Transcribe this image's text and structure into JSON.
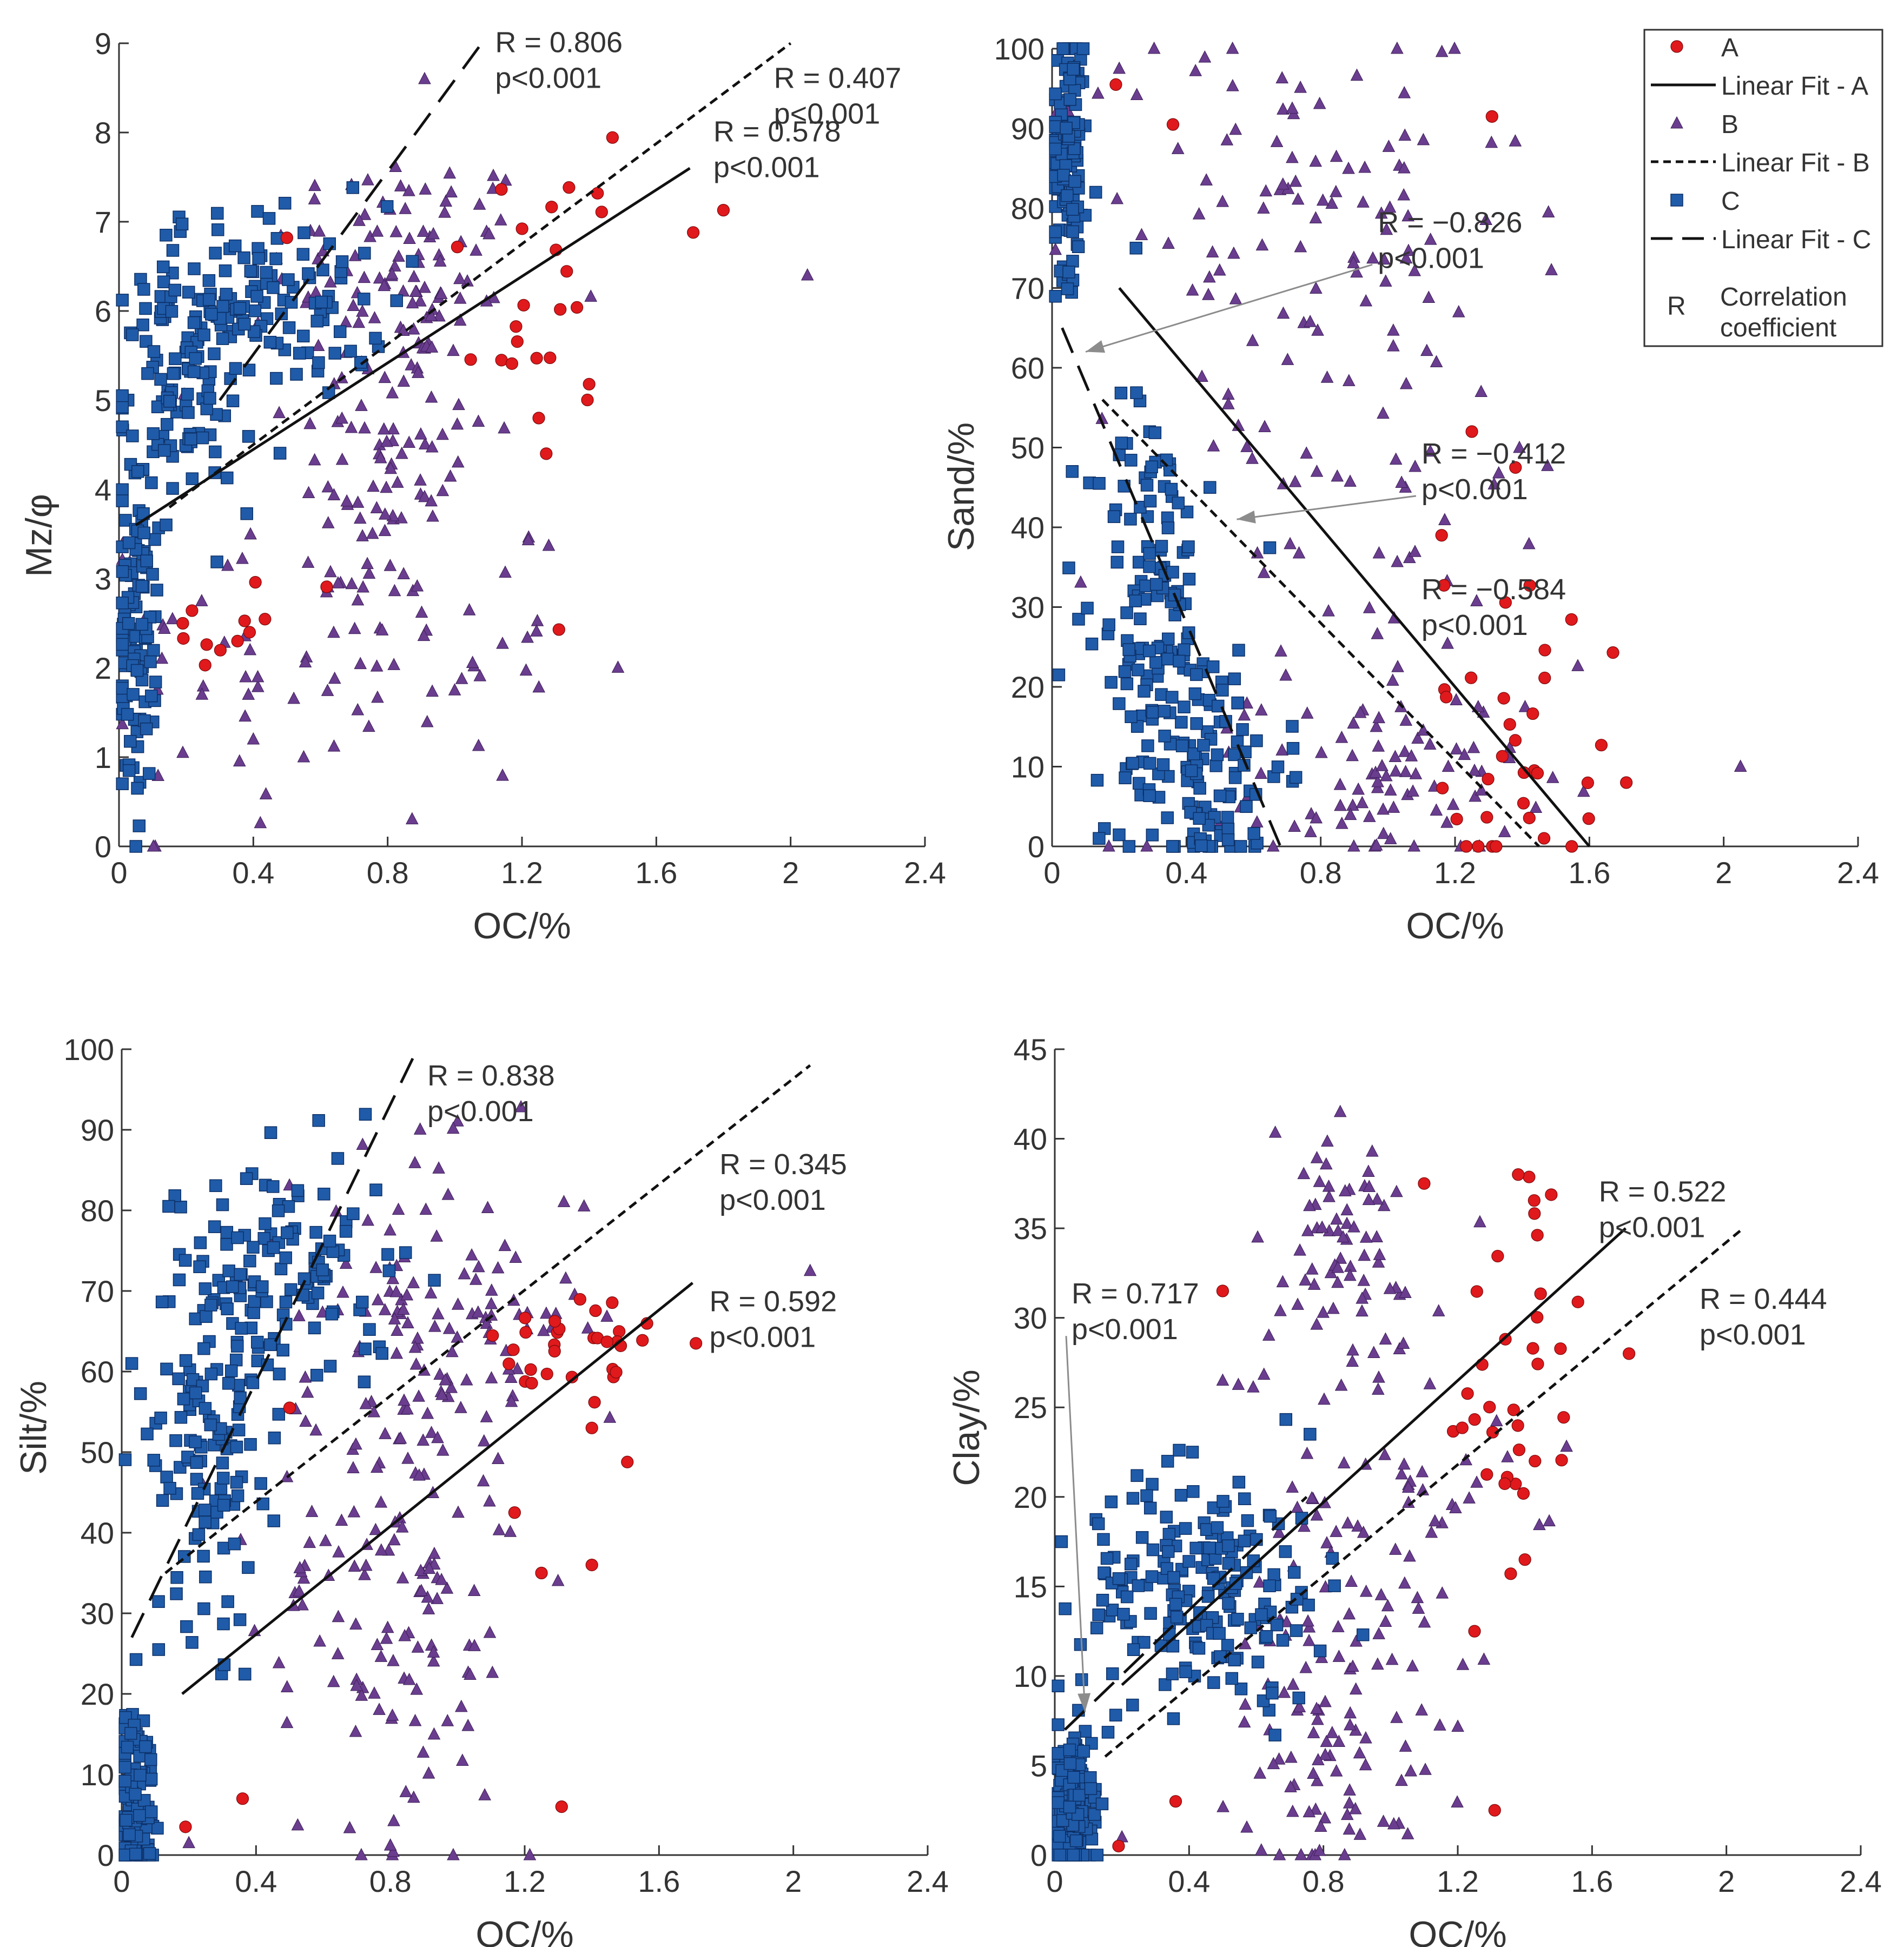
{
  "figure": {
    "colors": {
      "A": "#e0191c",
      "B": "#6a3d8f",
      "C": "#1f5ba8",
      "outline": "#333333",
      "arrow": "#8c8c8c"
    },
    "legend": {
      "entries": [
        {
          "key": "A",
          "kind": "marker",
          "label": "A"
        },
        {
          "key": "A",
          "kind": "line",
          "label": "Linear Fit - A"
        },
        {
          "key": "B",
          "kind": "marker",
          "label": "B"
        },
        {
          "key": "B",
          "kind": "line",
          "label": "Linear Fit - B"
        },
        {
          "key": "C",
          "kind": "marker",
          "label": "C"
        },
        {
          "key": "C",
          "kind": "line",
          "label": "Linear Fit - C"
        }
      ],
      "r_symbol": "R",
      "r_desc_1": "Correlation",
      "r_desc_2": "coefficient"
    }
  },
  "chart_data": [
    {
      "id": "mz",
      "type": "scatter",
      "xlabel": "OC/%",
      "ylabel": "Mz/φ",
      "xlim": [
        0,
        2.4
      ],
      "ylim": [
        0,
        9
      ],
      "xticks": [
        0,
        0.4,
        0.8,
        1.2,
        1.6,
        2,
        2.4
      ],
      "yticks": [
        0,
        1,
        2,
        3,
        4,
        5,
        6,
        7,
        8,
        9
      ],
      "series": [
        {
          "name": "A",
          "marker": "circle",
          "count": 40,
          "centers": [
            [
              1.35,
              7.2,
              0.15,
              0.5
            ],
            [
              0.4,
              2.5,
              0.15,
              0.3
            ],
            [
              1.25,
              5.5,
              0.1,
              0.5
            ]
          ],
          "extra": [
            [
              1.31,
              2.43
            ],
            [
              0.19,
              2.5
            ],
            [
              1.71,
              6.88
            ],
            [
              1.17,
              5.41
            ],
            [
              1.25,
              4.8
            ],
            [
              1.4,
              5.18
            ],
            [
              0.5,
              6.82
            ]
          ],
          "fit": {
            "x": [
              0.05,
              1.7
            ],
            "y": [
              3.6,
              7.6
            ],
            "style": "solid"
          }
        },
        {
          "name": "B",
          "marker": "triangle",
          "count": 260,
          "centers": [
            [
              0.85,
              6.6,
              0.2,
              0.6
            ],
            [
              0.8,
              4.5,
              0.15,
              1.2
            ],
            [
              0.65,
              2.2,
              0.35,
              1.0
            ]
          ],
          "extra": [
            [
              2.05,
              6.4
            ],
            [
              0.91,
              8.6
            ],
            [
              0.55,
              1.0
            ],
            [
              0.19,
              1.05
            ],
            [
              0.4,
              1.2
            ]
          ],
          "fit": {
            "x": [
              0.15,
              2.0
            ],
            "y": [
              3.8,
              9.0
            ],
            "style": "dashed"
          }
        },
        {
          "name": "C",
          "marker": "square",
          "count": 340,
          "centers": [
            [
              0.45,
              6.1,
              0.18,
              0.55
            ],
            [
              0.2,
              5.2,
              0.1,
              0.7
            ],
            [
              0.05,
              2.4,
              0.03,
              0.9
            ]
          ],
          "extra": [
            [
              0.06,
              0.23
            ],
            [
              0.03,
              0.85
            ],
            [
              0.14,
              6.85
            ],
            [
              0.04,
              4.6
            ]
          ],
          "fit": {
            "x": [
              0.3,
              1.08
            ],
            "y": [
              5.0,
              9.0
            ],
            "style": "longdash"
          }
        }
      ],
      "annotations": [
        {
          "r": "R = 0.806",
          "p": "p<0.001",
          "at": [
            1.12,
            8.9
          ]
        },
        {
          "r": "R = 0.407",
          "p": "p<0.001",
          "at": [
            1.95,
            8.5
          ]
        },
        {
          "r": "R = 0.578",
          "p": "p<0.001",
          "at": [
            1.77,
            7.9
          ]
        }
      ]
    },
    {
      "id": "sand",
      "type": "scatter",
      "xlabel": "OC/%",
      "ylabel": "Sand/%",
      "xlim": [
        0,
        2.4
      ],
      "ylim": [
        0,
        100
      ],
      "xticks": [
        0,
        0.4,
        0.8,
        1.2,
        1.6,
        2,
        2.4
      ],
      "yticks": [
        0,
        10,
        20,
        30,
        40,
        50,
        60,
        70,
        80,
        90,
        100
      ],
      "series": [
        {
          "name": "A",
          "marker": "circle",
          "count": 40,
          "centers": [
            [
              1.4,
              5,
              0.12,
              5
            ],
            [
              1.35,
              20,
              0.1,
              10
            ]
          ],
          "extra": [
            [
              0.19,
              95.5
            ],
            [
              0.36,
              90.5
            ],
            [
              1.31,
              91.5
            ],
            [
              1.25,
              52
            ],
            [
              1.16,
              39
            ],
            [
              1.38,
              47.5
            ],
            [
              1.71,
              8
            ]
          ],
          "fit": {
            "x": [
              0.2,
              1.6
            ],
            "y": [
              70,
              0
            ],
            "style": "solid"
          }
        },
        {
          "name": "B",
          "marker": "triangle",
          "count": 240,
          "centers": [
            [
              1.0,
              8,
              0.2,
              6
            ],
            [
              0.9,
              45,
              0.35,
              25
            ],
            [
              0.7,
              80,
              0.35,
              12
            ]
          ],
          "extra": [
            [
              2.05,
              10
            ],
            [
              0.2,
              97.5
            ]
          ],
          "fit": {
            "x": [
              0.15,
              1.45
            ],
            "y": [
              56,
              0
            ],
            "style": "dashed"
          }
        },
        {
          "name": "C",
          "marker": "square",
          "count": 360,
          "centers": [
            [
              0.45,
              10,
              0.12,
              8
            ],
            [
              0.3,
              32,
              0.08,
              12
            ],
            [
              0.05,
              88,
              0.03,
              8
            ]
          ],
          "extra": [
            [
              0.14,
              1
            ],
            [
              0.05,
              72
            ],
            [
              0.02,
              21.5
            ],
            [
              0.06,
              47
            ],
            [
              0.13,
              82
            ],
            [
              0.25,
              75
            ],
            [
              0.47,
              45
            ]
          ],
          "fit": {
            "x": [
              0.03,
              0.68
            ],
            "y": [
              65,
              0
            ],
            "style": "longdash"
          }
        }
      ],
      "annotations": [
        {
          "r": "R = −0.826",
          "p": "p<0.001",
          "at": [
            0.97,
            77
          ],
          "arrow_to": [
            0.1,
            62
          ]
        },
        {
          "r": "R = −0.412",
          "p": "p<0.001",
          "at": [
            1.1,
            48
          ],
          "arrow_to": [
            0.55,
            41
          ]
        },
        {
          "r": "R = −0.584",
          "p": "p<0.001",
          "at": [
            1.1,
            31
          ]
        }
      ]
    },
    {
      "id": "silt",
      "type": "scatter",
      "xlabel": "OC/%",
      "ylabel": "Silt/%",
      "xlim": [
        0,
        2.4
      ],
      "ylim": [
        0,
        100
      ],
      "xticks": [
        0,
        0.4,
        0.8,
        1.2,
        1.6,
        2,
        2.4
      ],
      "yticks": [
        0,
        10,
        20,
        30,
        40,
        50,
        60,
        70,
        80,
        90,
        100
      ],
      "series": [
        {
          "name": "A",
          "marker": "circle",
          "count": 40,
          "centers": [
            [
              1.35,
              62,
              0.12,
              5
            ]
          ],
          "extra": [
            [
              0.19,
              3.5
            ],
            [
              0.36,
              7
            ],
            [
              1.31,
              6
            ],
            [
              1.17,
              42.5
            ],
            [
              1.25,
              35
            ],
            [
              1.4,
              36
            ],
            [
              1.71,
              63.5
            ],
            [
              0.5,
              55.5
            ],
            [
              1.4,
              53
            ]
          ],
          "fit": {
            "x": [
              0.18,
              1.7
            ],
            "y": [
              20,
              71
            ],
            "style": "solid"
          }
        },
        {
          "name": "B",
          "marker": "triangle",
          "count": 250,
          "centers": [
            [
              0.95,
              67,
              0.22,
              10
            ],
            [
              0.8,
              30,
              0.2,
              15
            ]
          ],
          "extra": [
            [
              2.05,
              72.5
            ],
            [
              0.2,
              1.5
            ],
            [
              0.8,
              1.2
            ]
          ],
          "fit": {
            "x": [
              0.13,
              2.05
            ],
            "y": [
              35,
              98
            ],
            "style": "dashed"
          }
        },
        {
          "name": "C",
          "marker": "square",
          "count": 360,
          "centers": [
            [
              0.5,
              72,
              0.15,
              8
            ],
            [
              0.25,
              52,
              0.08,
              12
            ],
            [
              0.04,
              7,
              0.03,
              6
            ]
          ],
          "extra": [
            [
              0.14,
              80.5
            ],
            [
              0.11,
              25.5
            ],
            [
              0.03,
              61
            ]
          ],
          "fit": {
            "x": [
              0.03,
              0.88
            ],
            "y": [
              27,
              100
            ],
            "style": "longdash"
          }
        }
      ],
      "annotations": [
        {
          "r": "R = 0.838",
          "p": "p<0.001",
          "at": [
            0.91,
            95.5
          ]
        },
        {
          "r": "R = 0.345",
          "p": "p<0.001",
          "at": [
            1.78,
            84.5
          ]
        },
        {
          "r": "R = 0.592",
          "p": "p<0.001",
          "at": [
            1.75,
            67.5
          ]
        }
      ]
    },
    {
      "id": "clay",
      "type": "scatter",
      "xlabel": "OC/%",
      "ylabel": "Clay/%",
      "xlim": [
        0,
        2.4
      ],
      "ylim": [
        0,
        45
      ],
      "xticks": [
        0,
        0.4,
        0.8,
        1.2,
        1.6,
        2,
        2.4
      ],
      "yticks": [
        0,
        5,
        10,
        15,
        20,
        25,
        30,
        35,
        40,
        45
      ],
      "series": [
        {
          "name": "A",
          "marker": "circle",
          "count": 42,
          "centers": [
            [
              1.35,
              30,
              0.12,
              4
            ],
            [
              1.35,
              23,
              0.1,
              3
            ]
          ],
          "extra": [
            [
              0.19,
              0.5
            ],
            [
              0.36,
              3
            ],
            [
              1.31,
              2.5
            ],
            [
              1.25,
              12.5
            ],
            [
              0.5,
              31.5
            ],
            [
              1.71,
              28
            ],
            [
              1.4,
              16.5
            ],
            [
              1.1,
              37.5
            ],
            [
              1.38,
              38
            ],
            [
              1.43,
              22
            ]
          ],
          "fit": {
            "x": [
              0.2,
              1.7
            ],
            "y": [
              9.5,
              35
            ],
            "style": "solid"
          }
        },
        {
          "name": "B",
          "marker": "triangle",
          "count": 230,
          "centers": [
            [
              0.95,
              17,
              0.2,
              5
            ],
            [
              0.85,
              6,
              0.15,
              4
            ],
            [
              0.85,
              33,
              0.15,
              4
            ]
          ],
          "extra": [
            [
              0.85,
              41.5
            ],
            [
              0.5,
              26.5
            ],
            [
              0.2,
              1.0
            ]
          ],
          "fit": {
            "x": [
              0.15,
              2.05
            ],
            "y": [
              5.5,
              35
            ],
            "style": "dashed"
          }
        },
        {
          "name": "C",
          "marker": "square",
          "count": 380,
          "centers": [
            [
              0.45,
              15,
              0.18,
              3.2
            ],
            [
              0.05,
              2.5,
              0.03,
              2
            ]
          ],
          "extra": [
            [
              0.02,
              17.5
            ],
            [
              0.76,
              23.5
            ],
            [
              0.41,
              22.5
            ],
            [
              0.13,
              18.5
            ]
          ],
          "fit": {
            "x": [
              0.03,
              0.75
            ],
            "y": [
              7,
              20
            ],
            "style": "longdash"
          }
        }
      ],
      "annotations": [
        {
          "r": "R = 0.717",
          "p": "p<0.001",
          "at": [
            0.05,
            30.8
          ],
          "arrow_to": [
            0.09,
            8
          ]
        },
        {
          "r": "R = 0.522",
          "p": "p<0.001",
          "at": [
            1.62,
            36.5
          ]
        },
        {
          "r": "R = 0.444",
          "p": "p<0.001",
          "at": [
            1.92,
            30.5
          ]
        }
      ]
    }
  ]
}
